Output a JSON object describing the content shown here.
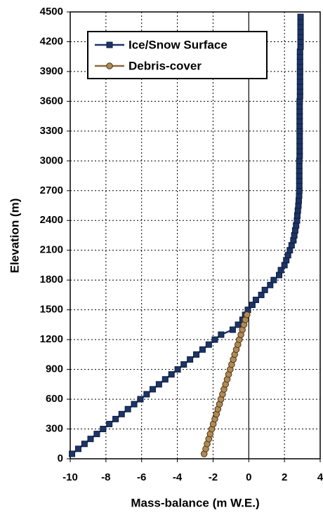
{
  "chart_data": {
    "type": "line",
    "x_label": "Mass-balance (m W.E.)",
    "y_label": "Elevation (m)",
    "xlim": [
      -10,
      4
    ],
    "xticks": [
      -10,
      -8,
      -6,
      -4,
      -2,
      0,
      2,
      4
    ],
    "ylim": [
      0,
      4500
    ],
    "yticks": [
      0,
      300,
      600,
      900,
      1200,
      1500,
      1800,
      2100,
      2400,
      2700,
      3000,
      3300,
      3600,
      3900,
      4200,
      4500
    ],
    "grid": true,
    "legend": "top-left",
    "series": [
      {
        "name": "Ice/Snow Surface",
        "color": "#1c3466",
        "marker": "square",
        "x": [
          -9.9,
          -9.55,
          -9.2,
          -8.86,
          -8.51,
          -8.16,
          -7.81,
          -7.46,
          -7.12,
          -6.77,
          -6.42,
          -6.07,
          -5.72,
          -5.38,
          -5.03,
          -4.68,
          -4.33,
          -3.98,
          -3.64,
          -3.29,
          -2.94,
          -2.59,
          -2.24,
          -1.9,
          -1.55,
          -0.9,
          -0.6,
          -0.35,
          -0.2,
          -0.05,
          0.2,
          0.4,
          0.7,
          0.9,
          1.2,
          1.4,
          1.7,
          1.8,
          2.0,
          2.1,
          2.2,
          2.3,
          2.4,
          2.5,
          2.55,
          2.6,
          2.65,
          2.7,
          2.72,
          2.75,
          2.78,
          2.8,
          2.82,
          2.83,
          2.83,
          2.83,
          2.83,
          2.83,
          2.83,
          2.83,
          2.85,
          2.85,
          2.85,
          2.85,
          2.85,
          2.85,
          2.85,
          2.85,
          2.85,
          2.85,
          2.85,
          2.85,
          2.87,
          2.87,
          2.87,
          2.87,
          2.87,
          2.87,
          2.87,
          2.87,
          2.87,
          2.87,
          2.9,
          2.9,
          2.9,
          2.9,
          2.9,
          2.9,
          2.9
        ],
        "values": [
          50,
          100,
          150,
          200,
          250,
          300,
          350,
          400,
          450,
          500,
          550,
          600,
          650,
          700,
          750,
          800,
          850,
          900,
          950,
          1000,
          1050,
          1100,
          1150,
          1200,
          1250,
          1300,
          1350,
          1400,
          1450,
          1500,
          1550,
          1600,
          1650,
          1700,
          1750,
          1800,
          1850,
          1900,
          1950,
          2000,
          2050,
          2100,
          2150,
          2200,
          2250,
          2300,
          2350,
          2400,
          2450,
          2500,
          2550,
          2600,
          2650,
          2700,
          2750,
          2800,
          2850,
          2900,
          2950,
          3000,
          3050,
          3100,
          3150,
          3200,
          3250,
          3300,
          3350,
          3400,
          3450,
          3500,
          3550,
          3600,
          3650,
          3700,
          3750,
          3800,
          3850,
          3900,
          3950,
          4000,
          4050,
          4100,
          4150,
          4200,
          4250,
          4300,
          4350,
          4400,
          4450
        ]
      },
      {
        "name": "Debris-cover",
        "color": "#8a6a3c",
        "marker": "circle",
        "x": [
          -2.5,
          -2.41,
          -2.33,
          -2.24,
          -2.16,
          -2.07,
          -1.99,
          -1.9,
          -1.81,
          -1.73,
          -1.64,
          -1.56,
          -1.47,
          -1.39,
          -1.3,
          -1.21,
          -1.13,
          -1.04,
          -0.96,
          -0.87,
          -0.79,
          -0.7,
          -0.61,
          -0.53,
          -0.44,
          -0.36,
          -0.27,
          -0.19,
          -0.1
        ],
        "values": [
          50,
          100,
          150,
          200,
          250,
          300,
          350,
          400,
          450,
          500,
          550,
          600,
          650,
          700,
          750,
          800,
          850,
          900,
          950,
          1000,
          1050,
          1100,
          1150,
          1200,
          1250,
          1300,
          1350,
          1400,
          1450
        ]
      }
    ]
  }
}
